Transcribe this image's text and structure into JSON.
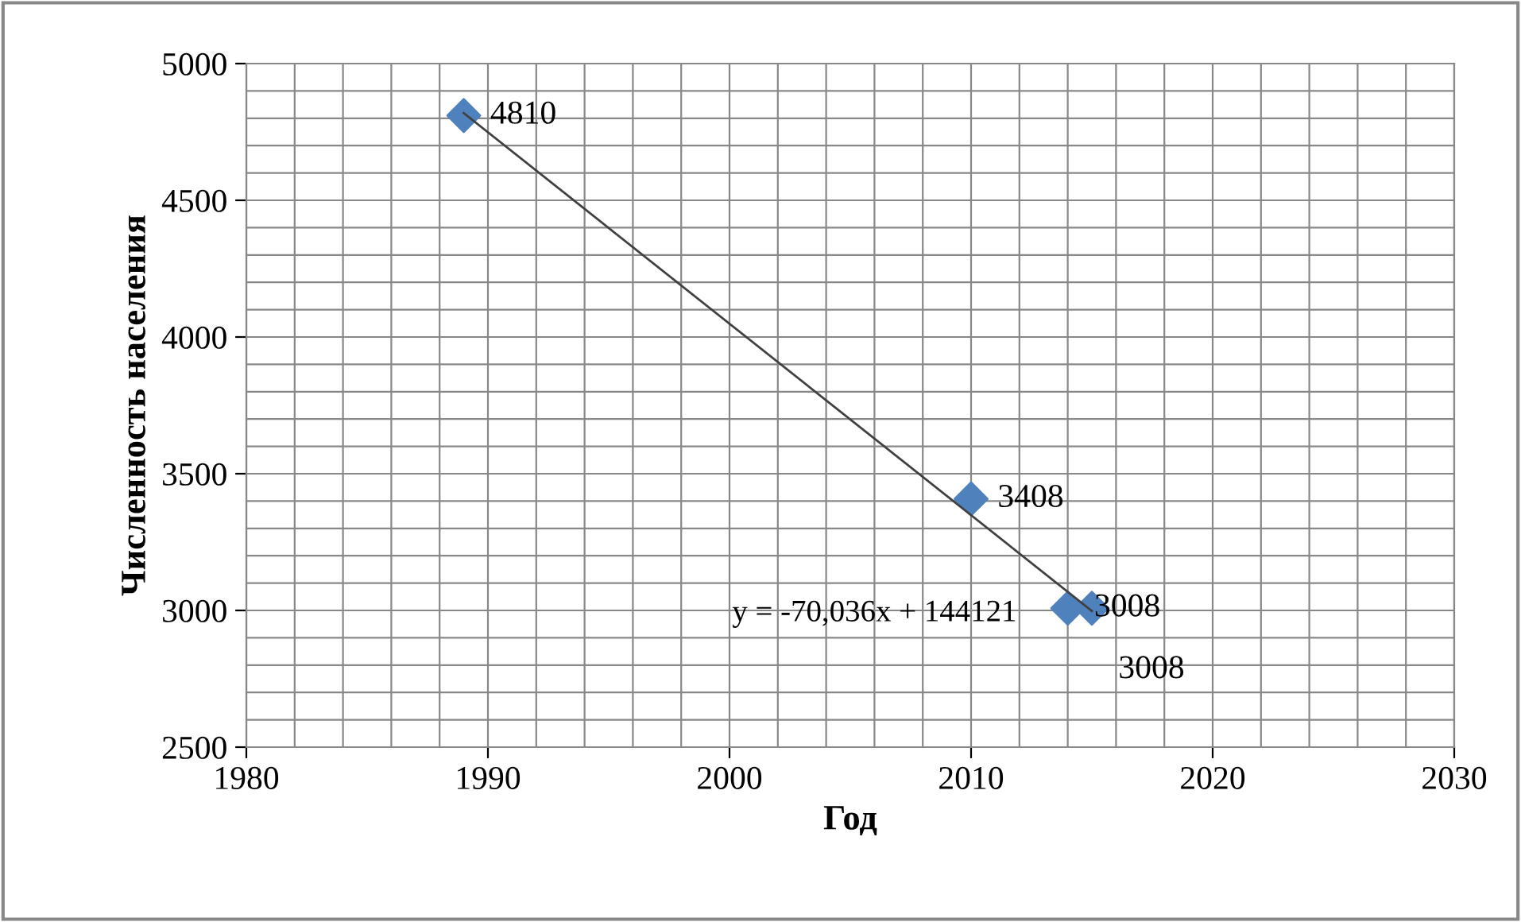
{
  "chart_data": {
    "type": "scatter",
    "xlabel": "Год",
    "ylabel": "Численность населения",
    "xlim": [
      1980,
      2030
    ],
    "xticks": [
      1980,
      1990,
      2000,
      2010,
      2020,
      2030
    ],
    "ylim": [
      2500,
      5000
    ],
    "yticks": [
      2500,
      3000,
      3500,
      4000,
      4500,
      5000
    ],
    "grid": true,
    "legend": false,
    "series": [
      {
        "color": "#4f81bd",
        "marker": "diamond",
        "x": [
          1989,
          2010,
          2014,
          2015
        ],
        "values": [
          4810,
          3408,
          3008,
          3008
        ],
        "value_labels": [
          "4810",
          "3408",
          "3008",
          "3008"
        ]
      },
      {
        "type": "line",
        "color": "#404040",
        "x": [
          1989,
          2015
        ],
        "values": [
          4819,
          2998
        ],
        "line_style": "solid"
      }
    ],
    "annotations": [
      "y = -70,036x + 144121"
    ]
  }
}
